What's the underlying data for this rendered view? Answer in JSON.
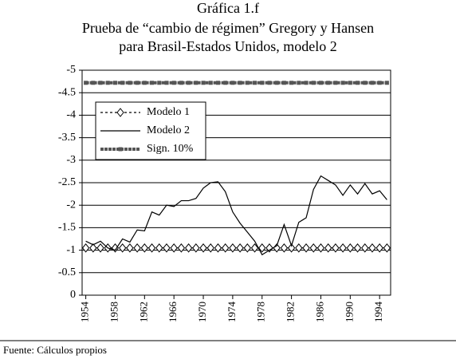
{
  "chart_data": {
    "type": "line",
    "title": [
      "Gráfica 1.f",
      "Prueba de “cambio de régimen” Gregory y Hansen",
      "para Brasil-Estados Unidos, modelo 2"
    ],
    "source": "Fuente: Cálculos propios",
    "x": [
      1954,
      1955,
      1956,
      1957,
      1958,
      1959,
      1960,
      1961,
      1962,
      1963,
      1964,
      1965,
      1966,
      1967,
      1968,
      1969,
      1970,
      1971,
      1972,
      1973,
      1974,
      1975,
      1976,
      1977,
      1978,
      1979,
      1980,
      1981,
      1982,
      1983,
      1984,
      1985,
      1986,
      1987,
      1988,
      1989,
      1990,
      1991,
      1992,
      1993,
      1994,
      1995
    ],
    "xlim": [
      1953.5,
      1995.5
    ],
    "xticks": [
      1954,
      1958,
      1962,
      1966,
      1970,
      1974,
      1978,
      1982,
      1986,
      1990,
      1994
    ],
    "ylim": [
      0,
      -5
    ],
    "yticks": [
      0,
      -0.5,
      -1,
      -1.5,
      -2,
      -2.5,
      -3,
      -3.5,
      -4,
      -4.5,
      -5
    ],
    "grid": true,
    "series": [
      {
        "name": "Modelo 1",
        "color": "#000000",
        "dash": "3,3",
        "marker": "diamond",
        "values": [
          -1.05,
          -1.05,
          -1.05,
          -1.05,
          -1.05,
          -1.05,
          -1.05,
          -1.05,
          -1.05,
          -1.05,
          -1.05,
          -1.05,
          -1.05,
          -1.05,
          -1.05,
          -1.05,
          -1.05,
          -1.05,
          -1.05,
          -1.05,
          -1.05,
          -1.05,
          -1.05,
          -1.05,
          -1.05,
          -1.05,
          -1.05,
          -1.05,
          -1.05,
          -1.05,
          -1.05,
          -1.05,
          -1.05,
          -1.05,
          -1.05,
          -1.05,
          -1.05,
          -1.05,
          -1.05,
          -1.05,
          -1.05,
          -1.05
        ]
      },
      {
        "name": "Modelo 2",
        "color": "#000000",
        "values": [
          -1.2,
          -1.12,
          -1.2,
          -1.05,
          -1.0,
          -1.25,
          -1.18,
          -1.45,
          -1.43,
          -1.85,
          -1.78,
          -2.0,
          -1.97,
          -2.1,
          -2.1,
          -2.15,
          -2.38,
          -2.5,
          -2.52,
          -2.3,
          -1.85,
          -1.6,
          -1.4,
          -1.2,
          -0.9,
          -1.0,
          -1.1,
          -1.57,
          -1.1,
          -1.62,
          -1.72,
          -2.35,
          -2.65,
          -2.55,
          -2.45,
          -2.22,
          -2.45,
          -2.25,
          -2.48,
          -2.25,
          -2.32,
          -2.12
        ]
      },
      {
        "name": "Sign. 10%",
        "color": "#555555",
        "dash": "4,1",
        "marker": "square",
        "values": [
          -4.72,
          -4.72,
          -4.72,
          -4.72,
          -4.72,
          -4.72,
          -4.72,
          -4.72,
          -4.72,
          -4.72,
          -4.72,
          -4.72,
          -4.72,
          -4.72,
          -4.72,
          -4.72,
          -4.72,
          -4.72,
          -4.72,
          -4.72,
          -4.72,
          -4.72,
          -4.72,
          -4.72,
          -4.72,
          -4.72,
          -4.72,
          -4.72,
          -4.72,
          -4.72,
          -4.72,
          -4.72,
          -4.72,
          -4.72,
          -4.72,
          -4.72,
          -4.72,
          -4.72,
          -4.72,
          -4.72,
          -4.72,
          -4.72
        ]
      }
    ]
  }
}
